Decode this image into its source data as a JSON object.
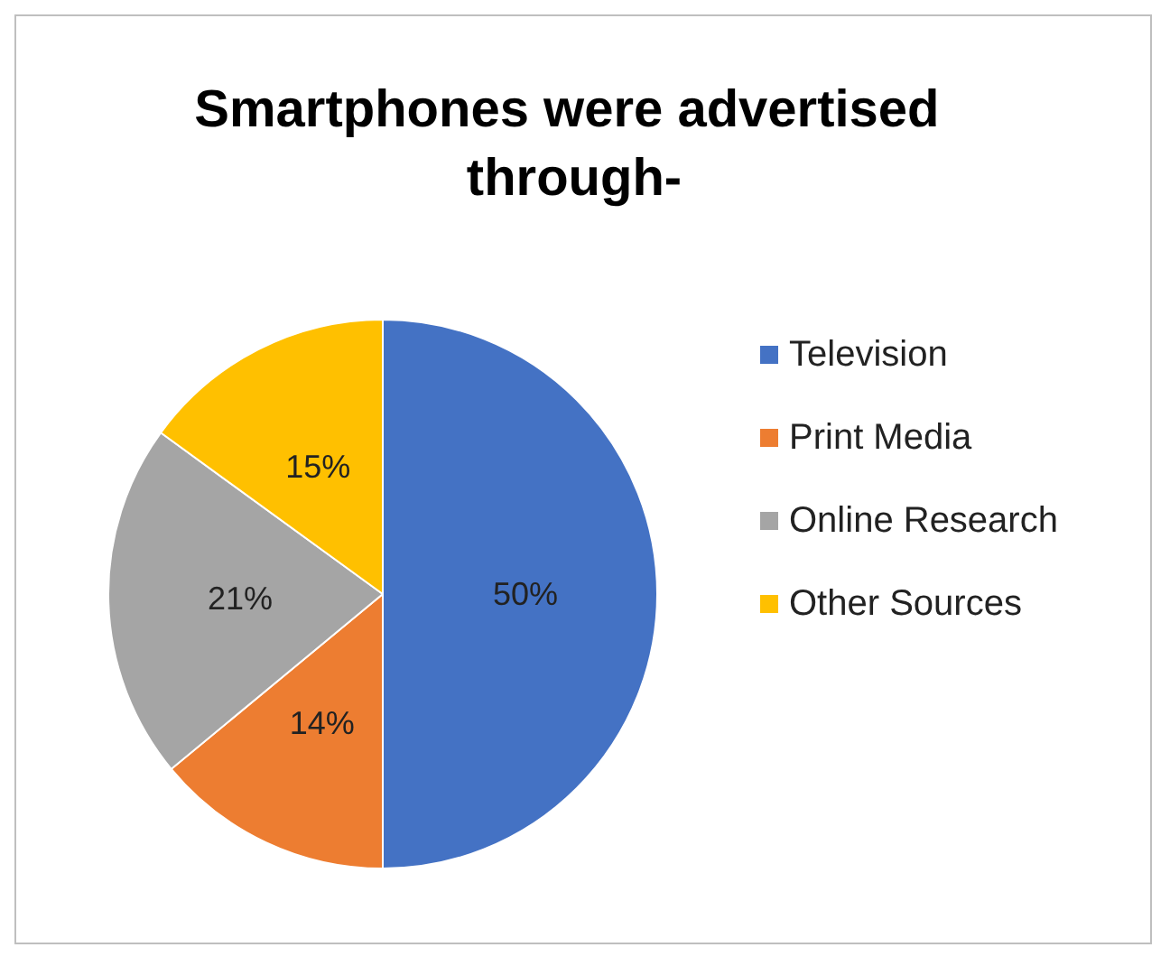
{
  "chart_data": {
    "type": "pie",
    "title": "Smartphones were advertised through-",
    "categories": [
      "Television",
      "Print Media",
      "Online Research",
      "Other Sources"
    ],
    "values": [
      50,
      14,
      21,
      15
    ],
    "colors": [
      "#4472c4",
      "#ed7d31",
      "#a5a5a5",
      "#ffc000"
    ],
    "value_labels": [
      "50%",
      "14%",
      "21%",
      "15%"
    ],
    "legend": "right"
  }
}
